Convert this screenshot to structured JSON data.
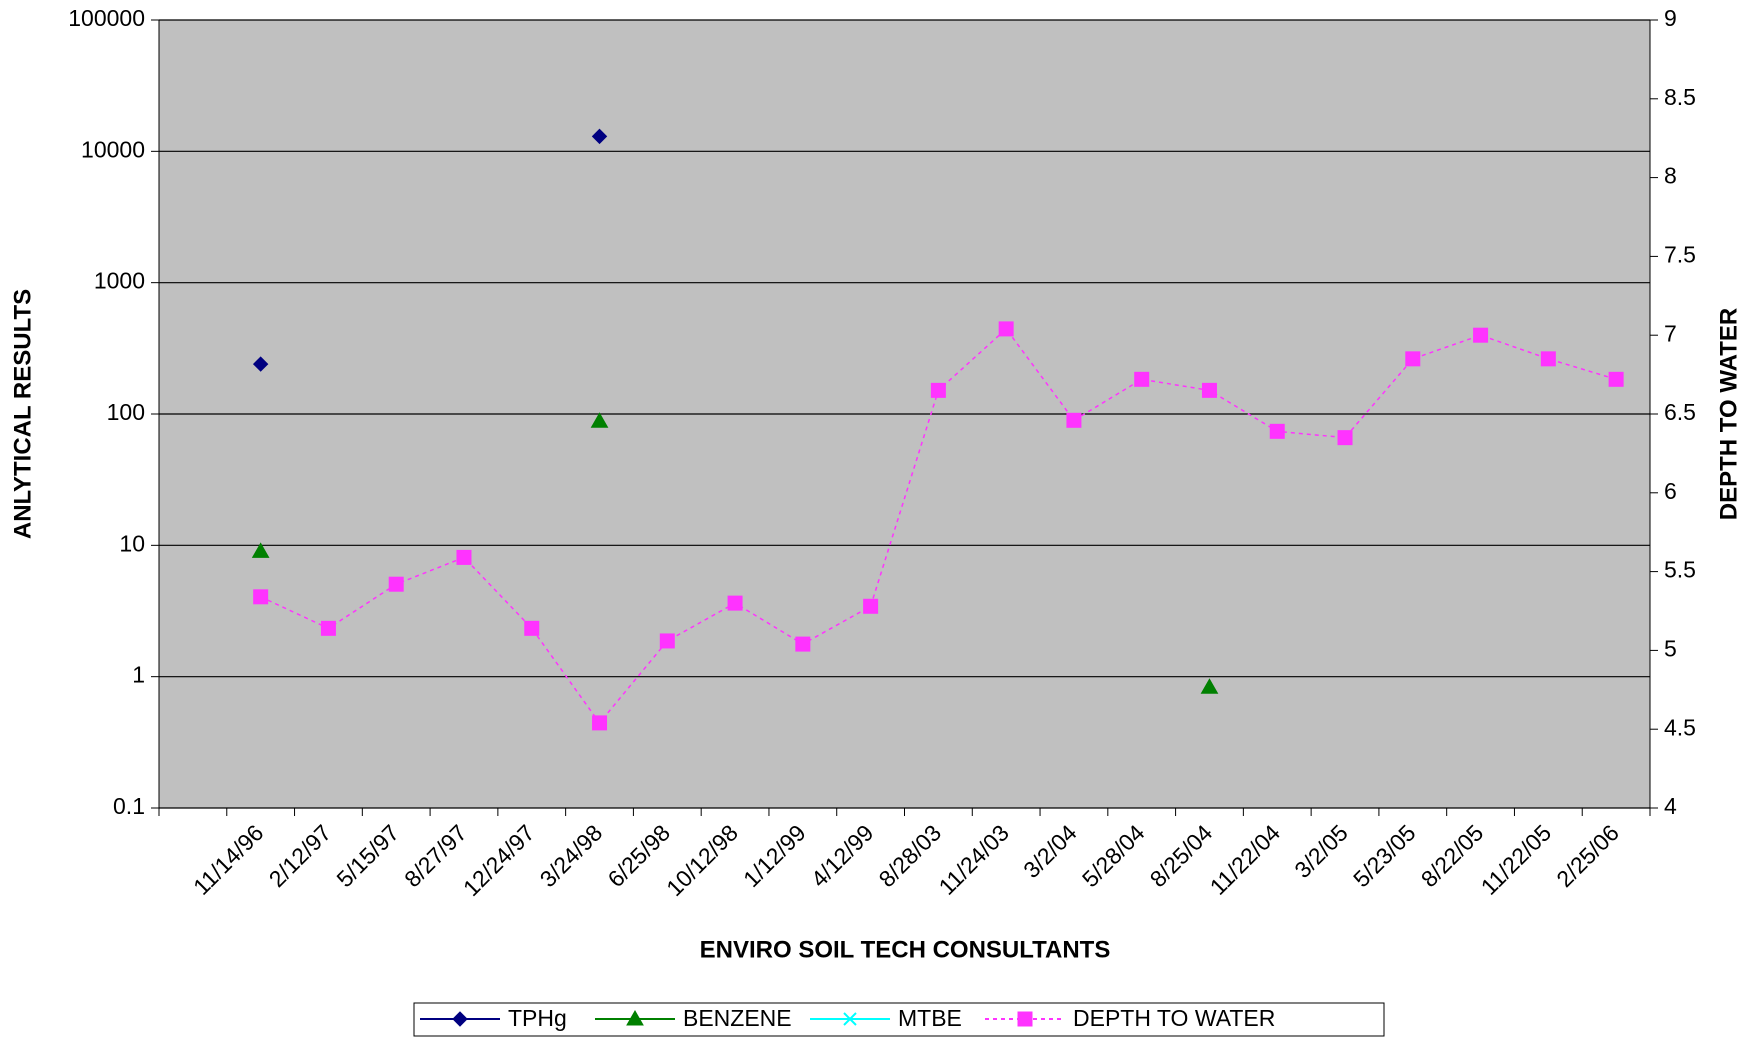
{
  "chart_data": {
    "type": "line",
    "x_label": "ENVIRO SOIL TECH CONSULTANTS",
    "y_label": "ANLYTICAL RESULTS",
    "y2_label": "DEPTH TO WATER",
    "categories": [
      null,
      "11/14/96",
      "2/12/97",
      "5/15/97",
      "8/27/97",
      "12/24/97",
      "3/24/98",
      "6/25/98",
      "10/12/98",
      "1/12/99",
      "4/12/99",
      "8/28/03",
      "11/24/03",
      "3/2/04",
      "5/28/04",
      "8/25/04",
      "11/22/04",
      "3/2/05",
      "5/23/05",
      "8/22/05",
      "11/22/05",
      "2/25/06"
    ],
    "ylim": [
      0.1,
      100000
    ],
    "yticks": [
      0.1,
      1,
      10,
      100,
      1000,
      10000,
      100000
    ],
    "y_log_scale": true,
    "y2lim": [
      4,
      9
    ],
    "y2ticks": [
      4,
      4.5,
      5,
      5.5,
      6,
      6.5,
      7,
      7.5,
      8,
      8.5,
      9
    ],
    "grid": true,
    "plot_background": "#c0c0c0",
    "legend_position": "bottom",
    "series": [
      {
        "name": "TPHg",
        "color": "#000080",
        "marker": "diamond",
        "dashed": false,
        "values": [
          null,
          240,
          null,
          null,
          null,
          null,
          13000,
          null,
          null,
          null,
          null,
          null,
          null,
          null,
          null,
          null,
          null,
          null,
          null,
          null,
          null,
          null
        ]
      },
      {
        "name": "BENZENE",
        "color": "#008000",
        "marker": "triangle",
        "dashed": false,
        "values": [
          null,
          9,
          null,
          null,
          null,
          null,
          88,
          null,
          null,
          null,
          null,
          null,
          null,
          null,
          null,
          0.83,
          null,
          null,
          null,
          null,
          null,
          null
        ]
      },
      {
        "name": "MTBE",
        "color": "#00ffff",
        "marker": "cross",
        "dashed": false,
        "values": [
          null,
          null,
          null,
          null,
          null,
          null,
          null,
          null,
          null,
          null,
          null,
          null,
          null,
          null,
          null,
          null,
          null,
          null,
          null,
          null,
          null,
          null
        ]
      },
      {
        "name": "DEPTH TO WATER",
        "color": "#ff33ff",
        "marker": "square",
        "dashed": true,
        "axis": "y2",
        "values": [
          null,
          5.34,
          5.14,
          5.42,
          5.59,
          5.14,
          4.54,
          5.06,
          5.3,
          5.04,
          5.28,
          6.65,
          7.04,
          6.46,
          6.72,
          6.65,
          6.39,
          6.35,
          6.85,
          7.0,
          6.85,
          6.72
        ]
      }
    ]
  }
}
